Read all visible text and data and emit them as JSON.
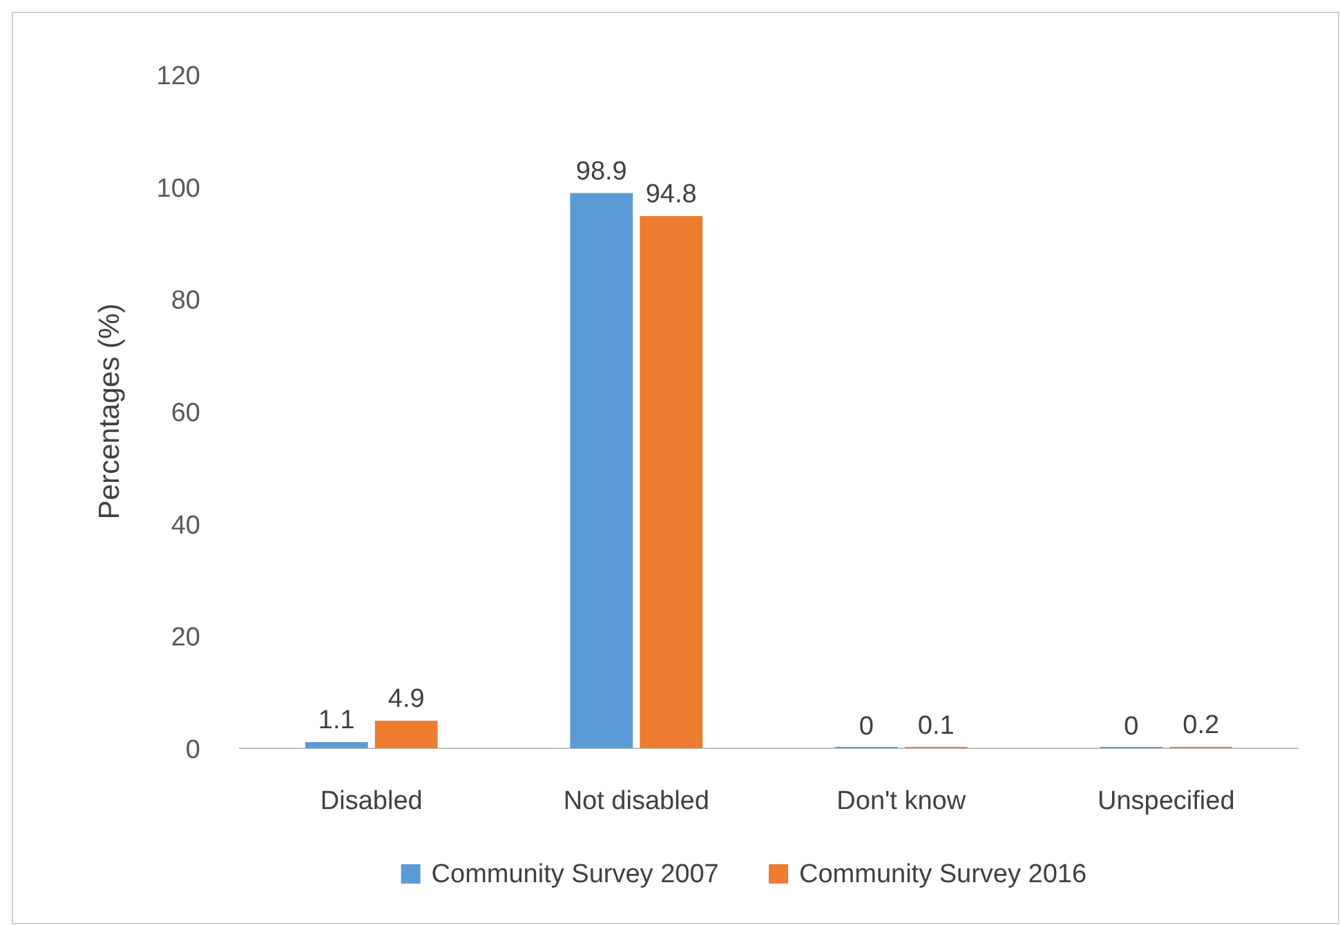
{
  "chart_data": {
    "type": "bar",
    "ylabel": "Percentages (%)",
    "categories": [
      "Disabled",
      "Not disabled",
      "Don't know",
      "Unspecified"
    ],
    "series": [
      {
        "name": "Community Survey 2007",
        "color": "#5b9bd5",
        "values": [
          1.1,
          98.9,
          0,
          0
        ]
      },
      {
        "name": "Community Survey 2016",
        "color": "#ed7d31",
        "values": [
          4.9,
          94.8,
          0.1,
          0.2
        ]
      }
    ],
    "ylim": [
      0,
      120
    ],
    "yticks": [
      0,
      20,
      40,
      60,
      80,
      100,
      120
    ],
    "data_labels": true,
    "grid": false,
    "legend": "bottom"
  }
}
